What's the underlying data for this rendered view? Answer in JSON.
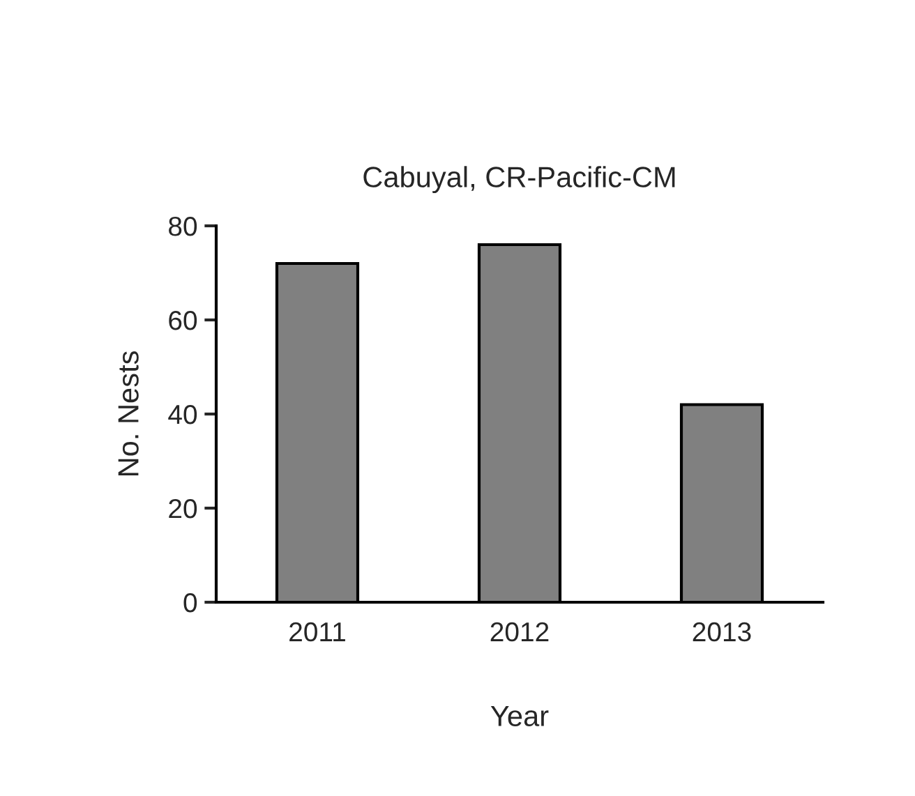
{
  "chart_data": {
    "type": "bar",
    "title": "Cabuyal, CR-Pacific-CM",
    "xlabel": "Year",
    "ylabel": "No. Nests",
    "categories": [
      "2011",
      "2012",
      "2013"
    ],
    "values": [
      72,
      76,
      42
    ],
    "color": "#808080",
    "ylim": [
      0,
      80
    ],
    "yticks": [
      0,
      20,
      40,
      60,
      80
    ],
    "grid": false,
    "legend": false
  }
}
